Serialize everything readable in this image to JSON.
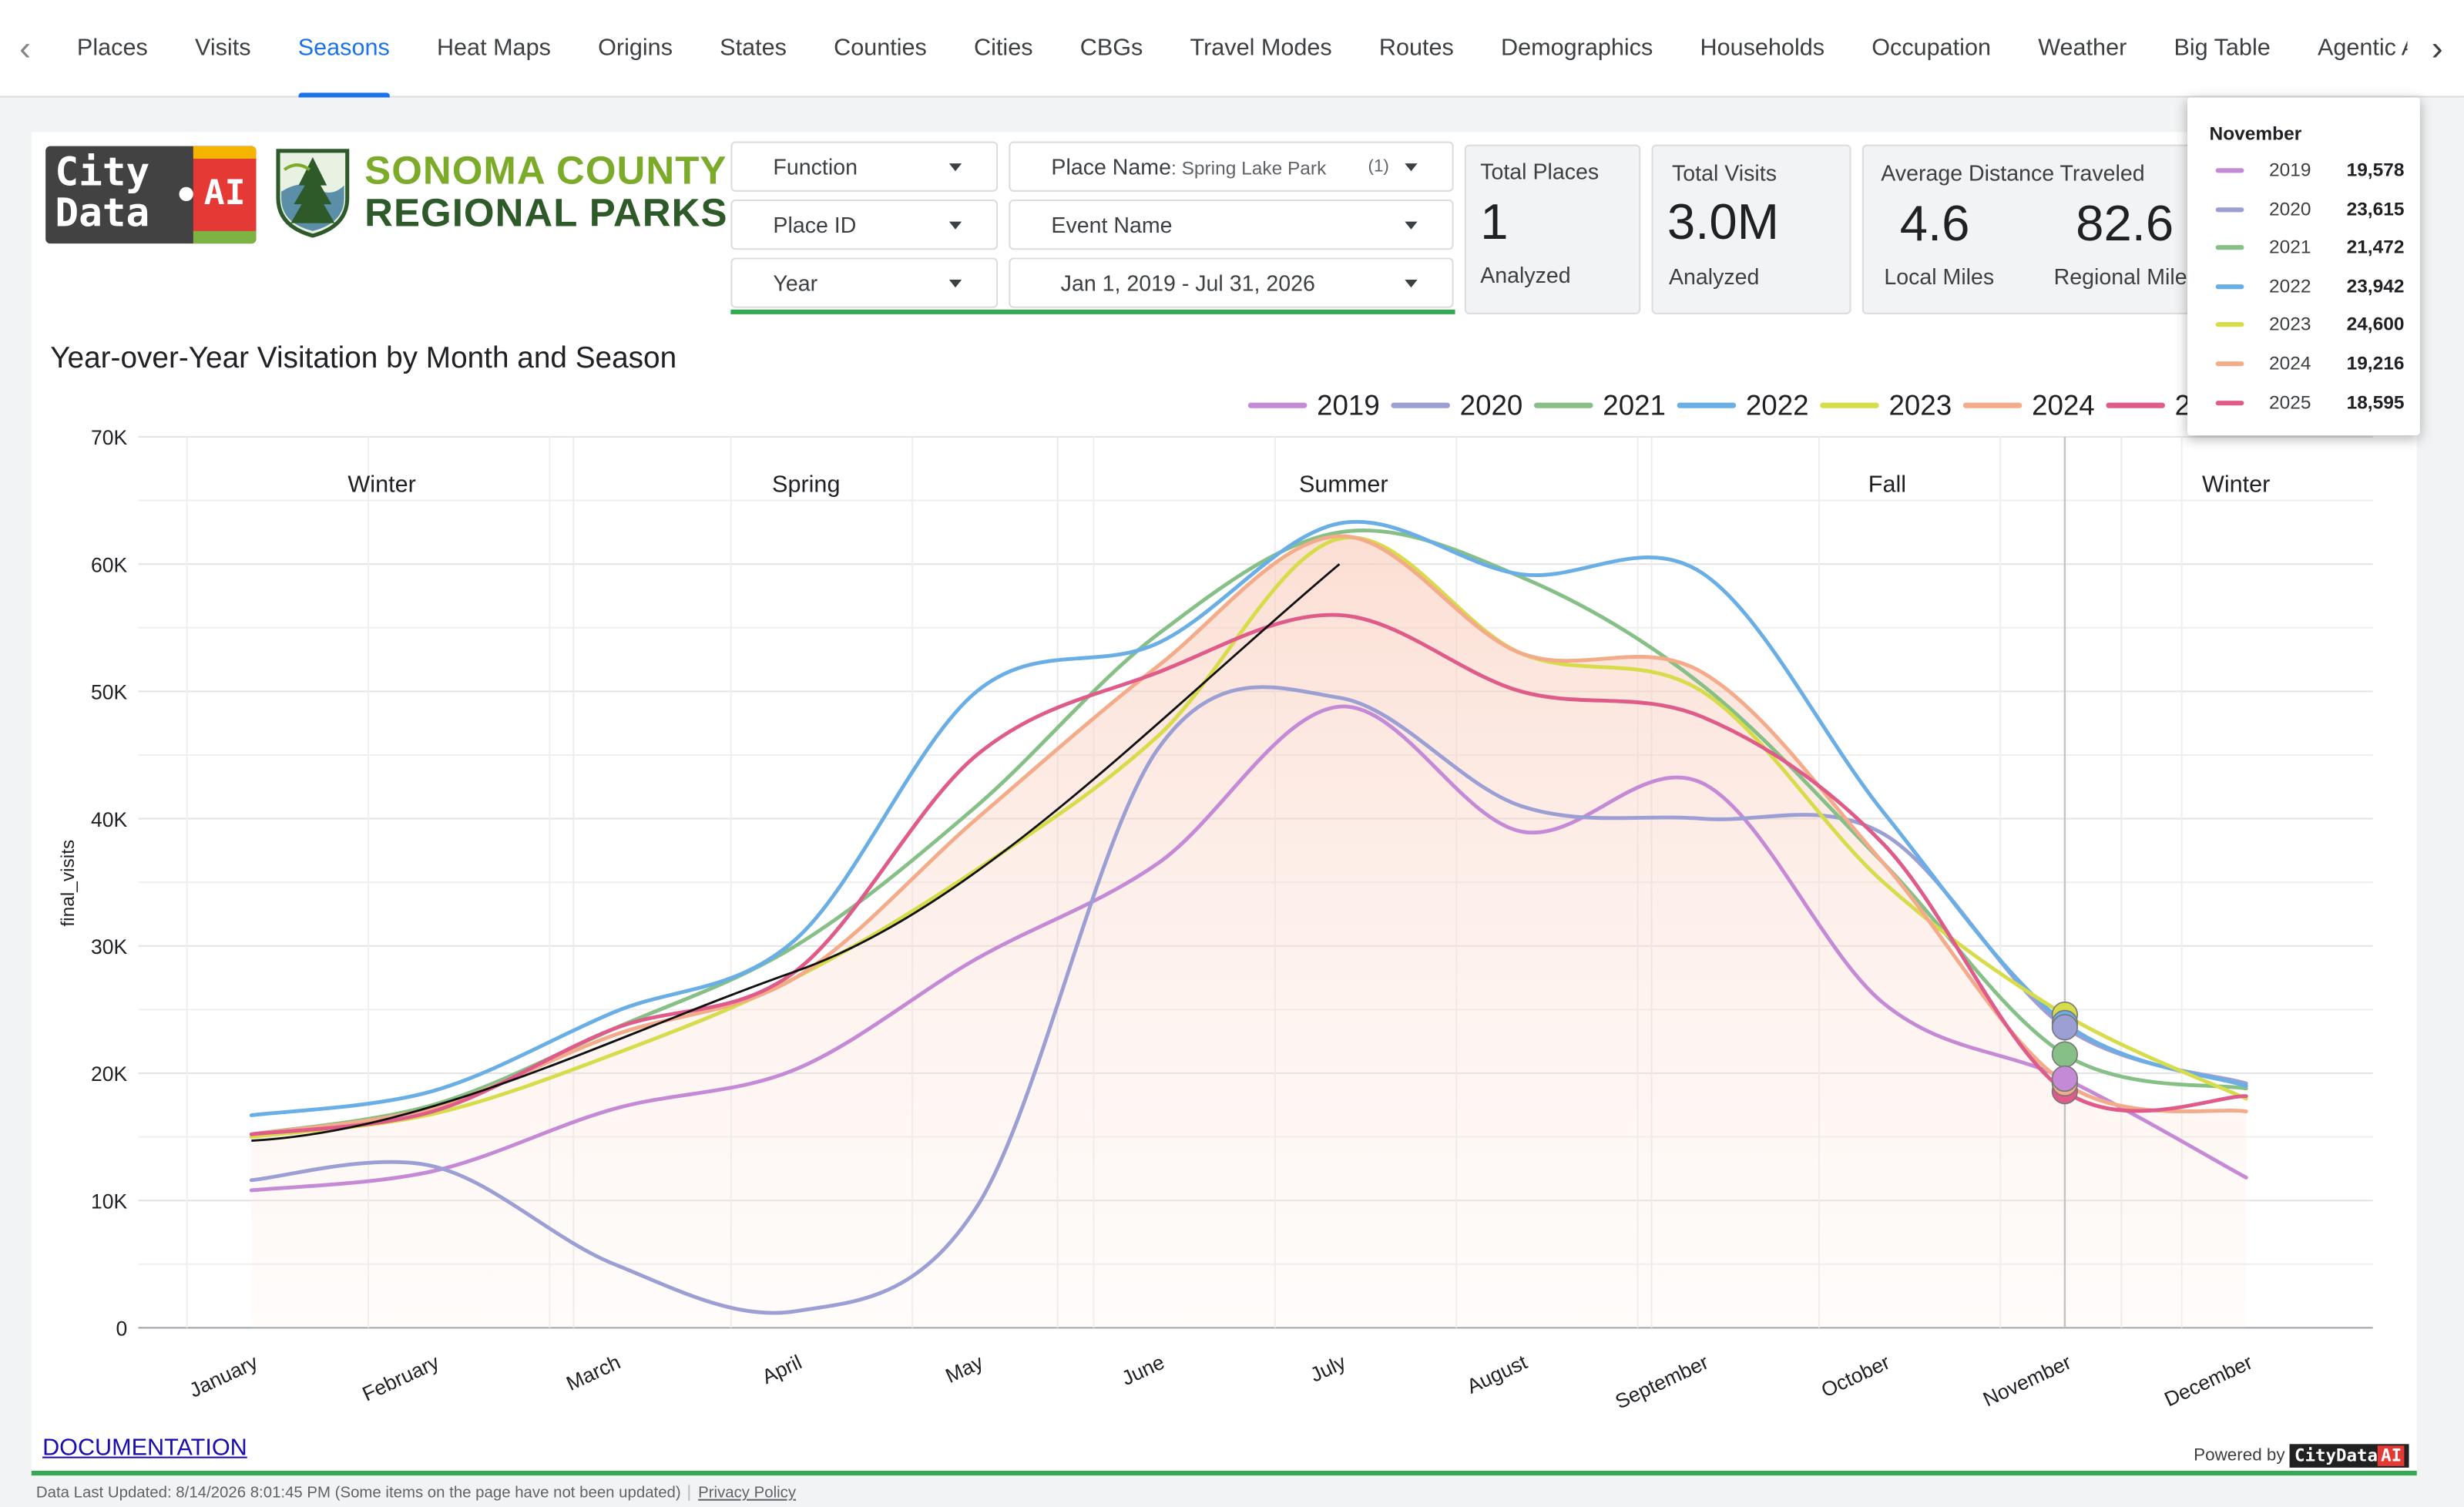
{
  "nav": {
    "prev_icon": "chevron-left-icon",
    "next_icon": "chevron-right-icon",
    "active_tab": "Seasons",
    "tabs": [
      "Places",
      "Visits",
      "Seasons",
      "Heat Maps",
      "Origins",
      "States",
      "Counties",
      "Cities",
      "CBGs",
      "Travel Modes",
      "Routes",
      "Demographics",
      "Households",
      "Occupation",
      "Weather",
      "Big Table",
      "Agentic AI"
    ]
  },
  "brand": {
    "citydata_line1": "City",
    "citydata_line2": "Data",
    "citydata_ai": "AI",
    "park_line1": "SONOMA COUNTY",
    "park_line2": "REGIONAL PARKS",
    "park_icon": "tree-shield-logo"
  },
  "filters": {
    "function": "Function",
    "place_id": "Place ID",
    "year": "Year",
    "place_name_label": "Place Name",
    "place_name_value": ": Spring Lake Park",
    "place_name_count": "(1)",
    "event_name": "Event Name",
    "date_range": "Jan 1, 2019 - Jul 31, 2026"
  },
  "scorecards": {
    "total_places": {
      "label": "Total Places",
      "value": "1",
      "sub": "Analyzed"
    },
    "total_visits": {
      "label": "Total Visits",
      "value": "3.0M",
      "sub": "Analyzed"
    },
    "distance": {
      "label": "Average Distance Traveled",
      "local_value": "4.6",
      "local_label": "Local Miles",
      "regional_value": "82.6",
      "regional_label": "Regional Miles"
    }
  },
  "chart_data": {
    "type": "line",
    "title": "Year-over-Year Visitation by Month and Season",
    "ylabel": "final_visits",
    "xlabel": "",
    "ylim": [
      0,
      70000
    ],
    "yticks": [
      "0",
      "10K",
      "20K",
      "30K",
      "40K",
      "50K",
      "60K",
      "70K"
    ],
    "grid": true,
    "legend_position": "top-right",
    "categories": [
      "January",
      "February",
      "March",
      "April",
      "May",
      "June",
      "July",
      "August",
      "September",
      "October",
      "November",
      "December"
    ],
    "seasons": [
      "Winter",
      "Spring",
      "Summer",
      "Fall",
      "Winter"
    ],
    "highlighted_category": "November",
    "series": [
      {
        "name": "2019",
        "color": "#c58ad6",
        "values": [
          10800,
          12300,
          17200,
          20300,
          29000,
          36500,
          48800,
          39000,
          42800,
          25500,
          19578,
          11800
        ]
      },
      {
        "name": "2020",
        "color": "#9c9fd4",
        "values": [
          11600,
          12700,
          5000,
          1300,
          9500,
          45500,
          49500,
          41000,
          40000,
          38800,
          23615,
          19200
        ]
      },
      {
        "name": "2021",
        "color": "#86c087",
        "values": [
          15200,
          17500,
          23500,
          30000,
          41000,
          54500,
          62500,
          59000,
          50500,
          36500,
          21472,
          18800
        ]
      },
      {
        "name": "2022",
        "color": "#6aaee6",
        "values": [
          16700,
          18600,
          24800,
          30500,
          50000,
          53800,
          63200,
          59200,
          59300,
          40500,
          23942,
          19000
        ]
      },
      {
        "name": "2023",
        "color": "#d6dc4a",
        "values": [
          15000,
          16800,
          21500,
          27500,
          36000,
          46500,
          62000,
          53000,
          50000,
          35000,
          24600,
          18000
        ]
      },
      {
        "name": "2024",
        "color": "#f3ab8a",
        "values": [
          15200,
          17300,
          23000,
          27500,
          40000,
          52000,
          62200,
          53000,
          51500,
          36500,
          19216,
          17000
        ]
      },
      {
        "name": "2025",
        "color": "#df5b8a",
        "values": [
          15200,
          17000,
          23500,
          28000,
          45000,
          51500,
          56000,
          50000,
          48000,
          38000,
          18595,
          18200
        ]
      }
    ]
  },
  "tooltip": {
    "title": "November",
    "rows": [
      {
        "year": "2019",
        "value": "19,578"
      },
      {
        "year": "2020",
        "value": "23,615"
      },
      {
        "year": "2021",
        "value": "21,472"
      },
      {
        "year": "2022",
        "value": "23,942"
      },
      {
        "year": "2023",
        "value": "24,600"
      },
      {
        "year": "2024",
        "value": "19,216"
      },
      {
        "year": "2025",
        "value": "18,595"
      }
    ]
  },
  "footer": {
    "documentation": "DOCUMENTATION",
    "powered_by": "Powered by",
    "powered_badge": "CityData",
    "powered_ai": "AI",
    "data_updated": "Data Last Updated: 8/14/2026 8:01:45 PM (Some items on the page have not been updated)",
    "privacy": "Privacy Policy"
  }
}
